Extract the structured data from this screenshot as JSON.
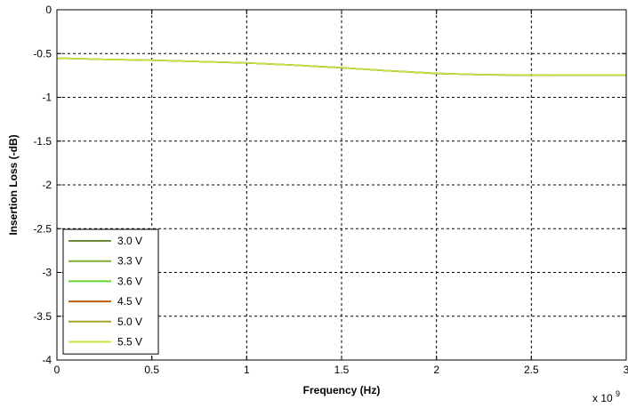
{
  "chart_data": {
    "type": "line",
    "xlabel": "Frequency (Hz)",
    "ylabel": "Insertion Loss (-dB)",
    "x_multiplier_label": "x 10",
    "x_multiplier_exponent": "9",
    "xlim": [
      0,
      3
    ],
    "ylim": [
      -4,
      0
    ],
    "xticks": [
      0,
      0.5,
      1,
      1.5,
      2,
      2.5,
      3
    ],
    "xtick_labels": [
      "0",
      "0.5",
      "1",
      "1.5",
      "2",
      "2.5",
      "3"
    ],
    "yticks": [
      0,
      -0.5,
      -1,
      -1.5,
      -2,
      -2.5,
      -3,
      -3.5,
      -4
    ],
    "ytick_labels": [
      "0",
      "-0.5",
      "-1",
      "-1.5",
      "-2",
      "-2.5",
      "-3",
      "-3.5",
      "-4"
    ],
    "grid": true,
    "legend_position": "bottom-left",
    "x": [
      0,
      0.25,
      0.5,
      0.75,
      1,
      1.25,
      1.5,
      1.75,
      2,
      2.25,
      2.5,
      2.75,
      3
    ],
    "series": [
      {
        "name": "3.0 V",
        "color": "#6f8a3a",
        "values": [
          -0.55,
          -0.565,
          -0.575,
          -0.59,
          -0.605,
          -0.63,
          -0.66,
          -0.695,
          -0.725,
          -0.74,
          -0.745,
          -0.745,
          -0.745
        ]
      },
      {
        "name": "3.3 V",
        "color": "#7fb03a",
        "values": [
          -0.552,
          -0.567,
          -0.577,
          -0.592,
          -0.607,
          -0.632,
          -0.662,
          -0.697,
          -0.727,
          -0.742,
          -0.747,
          -0.746,
          -0.746
        ]
      },
      {
        "name": "3.6 V",
        "color": "#66d633",
        "values": [
          -0.551,
          -0.566,
          -0.576,
          -0.591,
          -0.606,
          -0.631,
          -0.661,
          -0.696,
          -0.726,
          -0.741,
          -0.746,
          -0.745,
          -0.745
        ]
      },
      {
        "name": "4.5 V",
        "color": "#b85c00",
        "values": [
          -0.553,
          -0.568,
          -0.578,
          -0.593,
          -0.608,
          -0.633,
          -0.663,
          -0.698,
          -0.728,
          -0.743,
          -0.748,
          -0.747,
          -0.747
        ]
      },
      {
        "name": "5.0 V",
        "color": "#a9a32a",
        "values": [
          -0.552,
          -0.567,
          -0.577,
          -0.592,
          -0.607,
          -0.632,
          -0.662,
          -0.697,
          -0.727,
          -0.742,
          -0.747,
          -0.746,
          -0.746
        ]
      },
      {
        "name": "5.5 V",
        "color": "#c6e640",
        "values": [
          -0.551,
          -0.566,
          -0.576,
          -0.591,
          -0.606,
          -0.631,
          -0.661,
          -0.696,
          -0.726,
          -0.741,
          -0.746,
          -0.745,
          -0.745
        ]
      }
    ]
  }
}
